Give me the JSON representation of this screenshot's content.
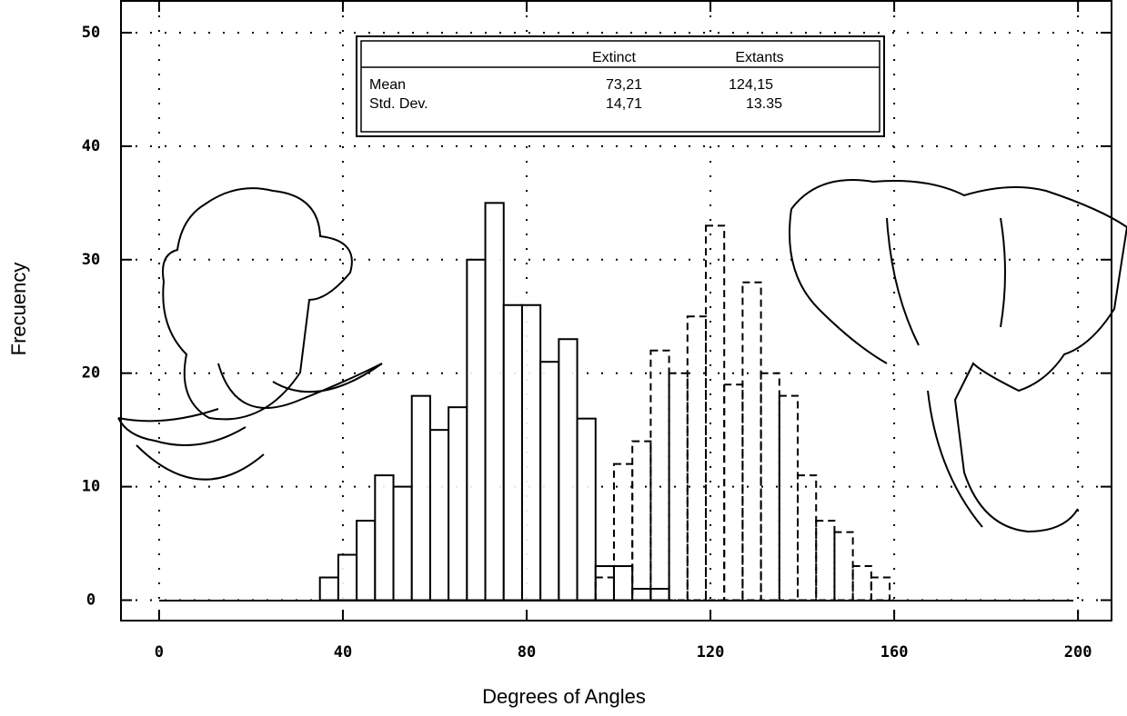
{
  "chart_data": {
    "type": "histogram",
    "x_label": "Degrees of Angles",
    "y_label": "Frecuency",
    "bins": [
      35,
      39,
      43,
      47,
      51,
      55,
      59,
      63,
      67,
      71,
      75,
      79,
      83,
      87,
      91,
      95,
      99,
      103,
      107,
      111,
      115,
      119,
      123,
      127,
      131,
      135,
      139,
      143,
      147,
      151,
      155,
      159,
      163
    ],
    "series": [
      {
        "color": "#000000",
        "line_style": "solid",
        "values": [
          2,
          4,
          7,
          11,
          10,
          18,
          15,
          17,
          30,
          35,
          26,
          26,
          21,
          23,
          16,
          3,
          3,
          1,
          1,
          0,
          0,
          0,
          0,
          0,
          0,
          0,
          0,
          0,
          0,
          0,
          0,
          0
        ]
      },
      {
        "color": "#000000",
        "line_style": "dashed",
        "values": [
          0,
          0,
          0,
          0,
          0,
          0,
          0,
          0,
          0,
          0,
          0,
          0,
          0,
          0,
          0,
          2,
          12,
          14,
          22,
          20,
          25,
          33,
          19,
          28,
          20,
          18,
          11,
          7,
          6,
          3,
          2,
          0
        ]
      }
    ],
    "xlim": [
      -8.3,
      207.3
    ],
    "ylim": [
      -1.8,
      52.8
    ],
    "xticks": [
      0,
      40,
      80,
      120,
      160,
      200
    ],
    "yticks": [
      0,
      10,
      20,
      30,
      40,
      50
    ],
    "grid": true,
    "table": {
      "header": [
        "Extinct",
        "Extants"
      ],
      "rows": [
        [
          "Mean",
          "73,21",
          "124,15"
        ],
        [
          "Std. Dev.",
          "14,71",
          "13.35"
        ]
      ]
    }
  }
}
